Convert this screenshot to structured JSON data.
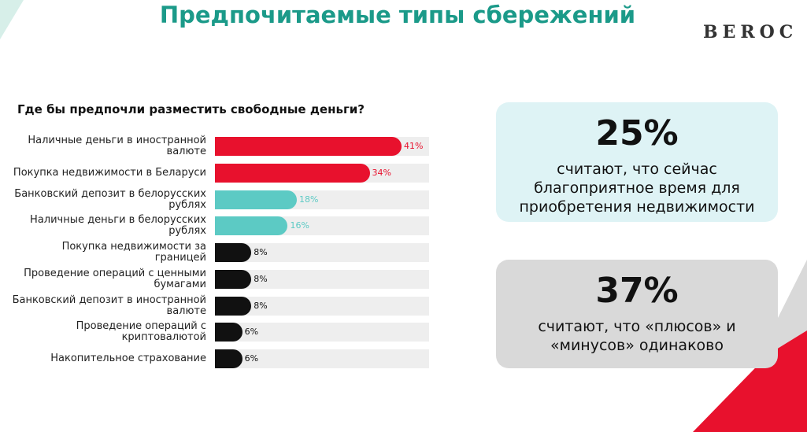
{
  "header": {
    "title": "Предпочитаемые типы сбережений",
    "logo": "BEROC"
  },
  "chart_data": {
    "type": "bar",
    "orientation": "horizontal",
    "title": "Где бы предпочли разместить свободные деньги?",
    "categories": [
      "Наличные деньги в иностранной валюте",
      "Покупка недвижимости в Беларуси",
      "Банковский депозит в белорусских рублях",
      "Наличные деньги в белорусских рублях",
      "Покупка недвижимости за границей",
      "Проведение операций с ценными бумагами",
      "Банковский депозит в иностранной валюте",
      "Проведение операций с криптовалютой",
      "Накопительное страхование"
    ],
    "values": [
      41,
      34,
      18,
      16,
      8,
      8,
      8,
      6,
      6
    ],
    "value_labels": [
      "41%",
      "34%",
      "18%",
      "16%",
      "8%",
      "8%",
      "8%",
      "6%",
      "6%"
    ],
    "colors": [
      "#e8112d",
      "#e8112d",
      "#5ccac4",
      "#5ccac4",
      "#111111",
      "#111111",
      "#111111",
      "#111111",
      "#111111"
    ]
  },
  "callouts": [
    {
      "value": "25%",
      "text": "считают, что сейчас благоприятное время для приобретения недвижимости",
      "color": "#def3f5"
    },
    {
      "value": "37%",
      "text": "считают, что «плюсов» и «минусов» одинаково",
      "color": "#d9d9d9"
    }
  ]
}
